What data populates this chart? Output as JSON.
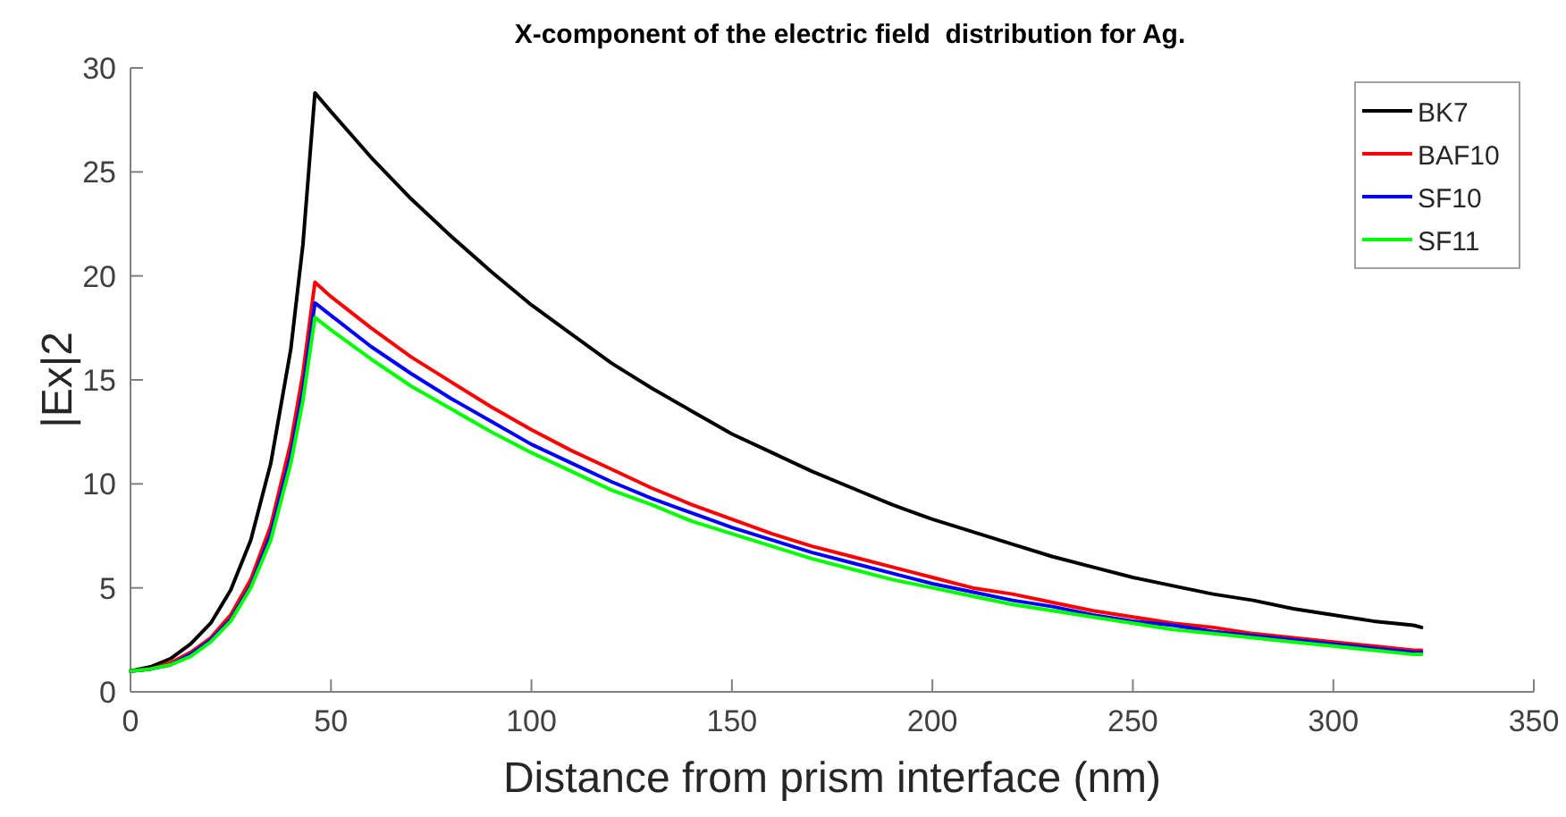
{
  "chart_data": {
    "type": "line",
    "title": "X-component of the electric field  distribution for Ag.",
    "xlabel": "Distance from prism interface (nm)",
    "ylabel": "|Ex|2",
    "x": [
      0,
      5,
      10,
      15,
      20,
      25,
      30,
      35,
      40,
      43,
      46,
      50,
      60,
      70,
      80,
      90,
      100,
      110,
      120,
      130,
      140,
      150,
      160,
      170,
      180,
      190,
      200,
      210,
      220,
      230,
      240,
      250,
      260,
      270,
      280,
      290,
      300,
      310,
      320,
      322
    ],
    "series": [
      {
        "name": "BK7",
        "color": "#000000",
        "values": [
          1,
          1.2,
          1.6,
          2.3,
          3.3,
          4.9,
          7.3,
          11,
          16.5,
          21.5,
          28.8,
          27.9,
          25.7,
          23.7,
          21.9,
          20.2,
          18.6,
          17.2,
          15.8,
          14.6,
          13.5,
          12.4,
          11.5,
          10.6,
          9.8,
          9,
          8.3,
          7.7,
          7.1,
          6.5,
          6,
          5.5,
          5.1,
          4.7,
          4.4,
          4,
          3.7,
          3.4,
          3.2,
          3.1
        ]
      },
      {
        "name": "BAF10",
        "color": "#ff0000",
        "values": [
          1,
          1.1,
          1.4,
          1.9,
          2.6,
          3.7,
          5.4,
          8,
          12,
          15.3,
          19.7,
          19,
          17.5,
          16.1,
          14.9,
          13.7,
          12.6,
          11.6,
          10.7,
          9.8,
          9,
          8.3,
          7.6,
          7,
          6.5,
          6,
          5.5,
          5,
          4.7,
          4.3,
          3.9,
          3.6,
          3.3,
          3.1,
          2.8,
          2.6,
          2.4,
          2.2,
          2,
          2
        ]
      },
      {
        "name": "SF10",
        "color": "#0000ff",
        "values": [
          1,
          1.1,
          1.3,
          1.8,
          2.5,
          3.5,
          5.1,
          7.6,
          11.4,
          14.5,
          18.7,
          18.1,
          16.6,
          15.3,
          14.1,
          13,
          11.9,
          11,
          10.1,
          9.3,
          8.6,
          7.9,
          7.3,
          6.7,
          6.2,
          5.7,
          5.2,
          4.8,
          4.4,
          4.1,
          3.7,
          3.4,
          3.2,
          2.9,
          2.7,
          2.5,
          2.3,
          2.1,
          1.9,
          1.9
        ]
      },
      {
        "name": "SF11",
        "color": "#00ff00",
        "values": [
          1,
          1.1,
          1.3,
          1.7,
          2.4,
          3.4,
          5,
          7.3,
          11,
          14,
          18,
          17.4,
          16,
          14.7,
          13.6,
          12.5,
          11.5,
          10.6,
          9.7,
          9,
          8.2,
          7.6,
          7,
          6.4,
          5.9,
          5.4,
          5,
          4.6,
          4.2,
          3.9,
          3.6,
          3.3,
          3,
          2.8,
          2.6,
          2.4,
          2.2,
          2,
          1.8,
          1.8
        ]
      }
    ],
    "xlim": [
      0,
      350
    ],
    "xticks": [
      0,
      50,
      100,
      150,
      200,
      250,
      300,
      350
    ],
    "ylim": [
      0,
      30
    ],
    "yticks": [
      0,
      5,
      10,
      15,
      20,
      25,
      30
    ],
    "legend": "top right",
    "grid": false,
    "marker": "none",
    "line_style": "solid"
  }
}
